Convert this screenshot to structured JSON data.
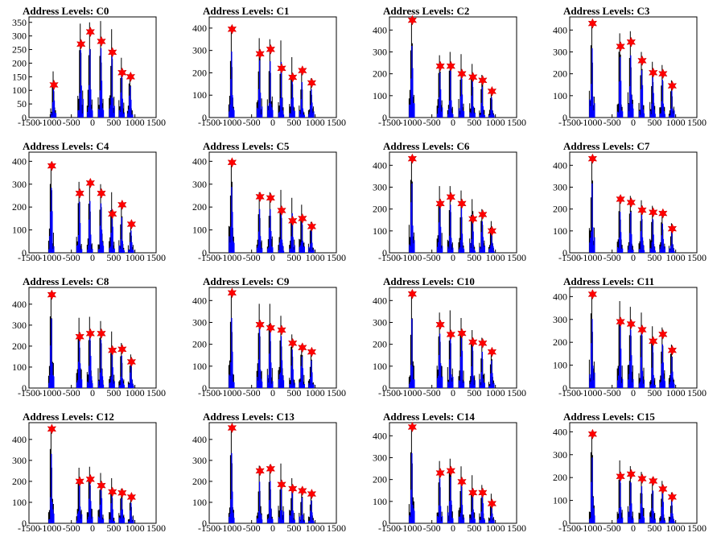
{
  "layout": {
    "rows": 4,
    "cols": 4
  },
  "chart_data": [
    {
      "type": "bar",
      "title": "Address Levels: C0",
      "xlim": [
        -1500,
        1500
      ],
      "ylim": [
        0,
        370
      ],
      "xticks": [
        -1500,
        -1000,
        -500,
        0,
        500,
        1000,
        1500
      ],
      "yticks": [
        0,
        50,
        100,
        150,
        200,
        250,
        300,
        350
      ],
      "series": [
        {
          "x": [
            -930,
            -290,
            -70,
            190,
            450,
            680,
            880
          ],
          "values": [
            170,
            345,
            350,
            355,
            325,
            220,
            160
          ],
          "markers": [
            120,
            270,
            315,
            280,
            240,
            165,
            150
          ]
        }
      ]
    },
    {
      "type": "bar",
      "title": "Address Levels: C1",
      "xlim": [
        -1500,
        1500
      ],
      "ylim": [
        0,
        450
      ],
      "xticks": [
        -1500,
        -1000,
        -500,
        0,
        500,
        1000,
        1500
      ],
      "yticks": [
        0,
        100,
        200,
        300,
        400
      ],
      "series": [
        {
          "x": [
            -980,
            -320,
            -70,
            190,
            450,
            680,
            900
          ],
          "values": [
            410,
            355,
            350,
            345,
            270,
            220,
            175
          ],
          "markers": [
            395,
            285,
            305,
            220,
            180,
            210,
            155
          ]
        }
      ]
    },
    {
      "type": "bar",
      "title": "Address Levels: C2",
      "xlim": [
        -1500,
        1500
      ],
      "ylim": [
        0,
        460
      ],
      "xticks": [
        -1500,
        -1000,
        -500,
        0,
        500,
        1000,
        1500
      ],
      "yticks": [
        0,
        100,
        200,
        300,
        400
      ],
      "series": [
        {
          "x": [
            -980,
            -320,
            -70,
            190,
            450,
            680,
            900
          ],
          "values": [
            455,
            285,
            300,
            290,
            245,
            195,
            130
          ],
          "markers": [
            445,
            235,
            235,
            200,
            185,
            170,
            120
          ]
        }
      ]
    },
    {
      "type": "bar",
      "title": "Address Levels: C3",
      "xlim": [
        -1500,
        1500
      ],
      "ylim": [
        0,
        460
      ],
      "xticks": [
        -1500,
        -1000,
        -500,
        0,
        500,
        1000,
        1500
      ],
      "yticks": [
        0,
        100,
        200,
        300,
        400
      ],
      "series": [
        {
          "x": [
            -980,
            -320,
            -70,
            190,
            450,
            680,
            900
          ],
          "values": [
            440,
            385,
            395,
            300,
            255,
            240,
            170
          ],
          "markers": [
            430,
            325,
            345,
            260,
            205,
            200,
            145
          ]
        }
      ]
    },
    {
      "type": "bar",
      "title": "Address Levels: C4",
      "xlim": [
        -1500,
        1500
      ],
      "ylim": [
        0,
        440
      ],
      "xticks": [
        -1500,
        -1000,
        -500,
        0,
        500,
        1000,
        1500
      ],
      "yticks": [
        0,
        100,
        200,
        300,
        400
      ],
      "series": [
        {
          "x": [
            -980,
            -320,
            -70,
            190,
            450,
            680,
            900
          ],
          "values": [
            395,
            310,
            315,
            300,
            265,
            215,
            135
          ],
          "markers": [
            380,
            260,
            305,
            260,
            170,
            210,
            125
          ]
        }
      ]
    },
    {
      "type": "bar",
      "title": "Address Levels: C5",
      "xlim": [
        -1500,
        1500
      ],
      "ylim": [
        0,
        440
      ],
      "xticks": [
        -1500,
        -1000,
        -500,
        0,
        500,
        1000,
        1500
      ],
      "yticks": [
        0,
        100,
        200,
        300,
        400
      ],
      "series": [
        {
          "x": [
            -980,
            -320,
            -70,
            190,
            450,
            680,
            900
          ],
          "values": [
            400,
            265,
            265,
            275,
            240,
            210,
            135
          ],
          "markers": [
            395,
            245,
            240,
            185,
            140,
            150,
            115
          ]
        }
      ]
    },
    {
      "type": "bar",
      "title": "Address Levels: C6",
      "xlim": [
        -1500,
        1500
      ],
      "ylim": [
        0,
        460
      ],
      "xticks": [
        -1500,
        -1000,
        -500,
        0,
        500,
        1000,
        1500
      ],
      "yticks": [
        0,
        100,
        200,
        300,
        400
      ],
      "series": [
        {
          "x": [
            -980,
            -320,
            -70,
            190,
            450,
            680,
            900
          ],
          "values": [
            440,
            305,
            305,
            285,
            245,
            200,
            145
          ],
          "markers": [
            430,
            225,
            255,
            225,
            155,
            175,
            100
          ]
        }
      ]
    },
    {
      "type": "bar",
      "title": "Address Levels: C7",
      "xlim": [
        -1500,
        1500
      ],
      "ylim": [
        0,
        460
      ],
      "xticks": [
        -1500,
        -1000,
        -500,
        0,
        500,
        1000,
        1500
      ],
      "yticks": [
        0,
        100,
        200,
        300,
        400
      ],
      "series": [
        {
          "x": [
            -980,
            -320,
            -70,
            190,
            450,
            680,
            900
          ],
          "values": [
            440,
            260,
            260,
            240,
            215,
            185,
            135
          ],
          "markers": [
            430,
            245,
            230,
            195,
            185,
            180,
            110
          ]
        }
      ]
    },
    {
      "type": "bar",
      "title": "Address Levels: C8",
      "xlim": [
        -1500,
        1500
      ],
      "ylim": [
        0,
        480
      ],
      "xticks": [
        -1500,
        -1000,
        -500,
        0,
        500,
        1000,
        1500
      ],
      "yticks": [
        0,
        100,
        200,
        300,
        400
      ],
      "series": [
        {
          "x": [
            -980,
            -320,
            -70,
            190,
            450,
            680,
            900
          ],
          "values": [
            460,
            335,
            340,
            320,
            270,
            215,
            160
          ],
          "markers": [
            445,
            245,
            260,
            260,
            180,
            185,
            125
          ]
        }
      ]
    },
    {
      "type": "bar",
      "title": "Address Levels: C9",
      "xlim": [
        -1500,
        1500
      ],
      "ylim": [
        0,
        460
      ],
      "xticks": [
        -1500,
        -1000,
        -500,
        0,
        500,
        1000,
        1500
      ],
      "yticks": [
        0,
        100,
        200,
        300,
        400
      ],
      "series": [
        {
          "x": [
            -980,
            -320,
            -70,
            190,
            450,
            680,
            900
          ],
          "values": [
            445,
            385,
            385,
            330,
            245,
            200,
            175
          ],
          "markers": [
            435,
            290,
            275,
            265,
            205,
            185,
            165
          ]
        }
      ]
    },
    {
      "type": "bar",
      "title": "Address Levels: C10",
      "xlim": [
        -1500,
        1500
      ],
      "ylim": [
        0,
        460
      ],
      "xticks": [
        -1500,
        -1000,
        -500,
        0,
        500,
        1000,
        1500
      ],
      "yticks": [
        0,
        100,
        200,
        300,
        400
      ],
      "series": [
        {
          "x": [
            -980,
            -320,
            -70,
            190,
            450,
            680,
            900
          ],
          "values": [
            440,
            345,
            355,
            320,
            265,
            230,
            175
          ],
          "markers": [
            430,
            290,
            245,
            250,
            210,
            205,
            165
          ]
        }
      ]
    },
    {
      "type": "bar",
      "title": "Address Levels: C11",
      "xlim": [
        -1500,
        1500
      ],
      "ylim": [
        0,
        440
      ],
      "xticks": [
        -1500,
        -1000,
        -500,
        0,
        500,
        1000,
        1500
      ],
      "yticks": [
        0,
        100,
        200,
        300,
        400
      ],
      "series": [
        {
          "x": [
            -980,
            -320,
            -70,
            190,
            450,
            680,
            900
          ],
          "values": [
            420,
            380,
            355,
            330,
            270,
            265,
            190
          ],
          "markers": [
            410,
            290,
            280,
            255,
            205,
            235,
            165
          ]
        }
      ]
    },
    {
      "type": "bar",
      "title": "Address Levels: C12",
      "xlim": [
        -1500,
        1500
      ],
      "ylim": [
        0,
        480
      ],
      "xticks": [
        -1500,
        -1000,
        -500,
        0,
        500,
        1000,
        1500
      ],
      "yticks": [
        0,
        100,
        200,
        300,
        400
      ],
      "series": [
        {
          "x": [
            -980,
            -320,
            -70,
            190,
            450,
            680,
            900
          ],
          "values": [
            460,
            265,
            270,
            240,
            215,
            165,
            135
          ],
          "markers": [
            450,
            200,
            210,
            180,
            150,
            145,
            125
          ]
        }
      ]
    },
    {
      "type": "bar",
      "title": "Address Levels: C13",
      "xlim": [
        -1500,
        1500
      ],
      "ylim": [
        0,
        480
      ],
      "xticks": [
        -1500,
        -1000,
        -500,
        0,
        500,
        1000,
        1500
      ],
      "yticks": [
        0,
        100,
        200,
        300,
        400
      ],
      "series": [
        {
          "x": [
            -980,
            -320,
            -70,
            190,
            450,
            680,
            900
          ],
          "values": [
            465,
            275,
            280,
            285,
            215,
            170,
            150
          ],
          "markers": [
            455,
            250,
            260,
            185,
            165,
            155,
            140
          ]
        }
      ]
    },
    {
      "type": "bar",
      "title": "Address Levels: C14",
      "xlim": [
        -1500,
        1500
      ],
      "ylim": [
        0,
        460
      ],
      "xticks": [
        -1500,
        -1000,
        -500,
        0,
        500,
        1000,
        1500
      ],
      "yticks": [
        0,
        100,
        200,
        300,
        400
      ],
      "series": [
        {
          "x": [
            -980,
            -320,
            -70,
            190,
            450,
            680,
            900
          ],
          "values": [
            445,
            285,
            295,
            260,
            220,
            175,
            135
          ],
          "markers": [
            440,
            230,
            240,
            190,
            140,
            140,
            90
          ]
        }
      ]
    },
    {
      "type": "bar",
      "title": "Address Levels: C15",
      "xlim": [
        -1500,
        1500
      ],
      "ylim": [
        0,
        440
      ],
      "xticks": [
        -1500,
        -1000,
        -500,
        0,
        500,
        1000,
        1500
      ],
      "yticks": [
        0,
        100,
        200,
        300,
        400
      ],
      "series": [
        {
          "x": [
            -980,
            -320,
            -70,
            190,
            450,
            680,
            900
          ],
          "values": [
            400,
            275,
            250,
            225,
            200,
            185,
            135
          ],
          "markers": [
            390,
            205,
            215,
            195,
            185,
            150,
            115
          ]
        }
      ]
    }
  ]
}
